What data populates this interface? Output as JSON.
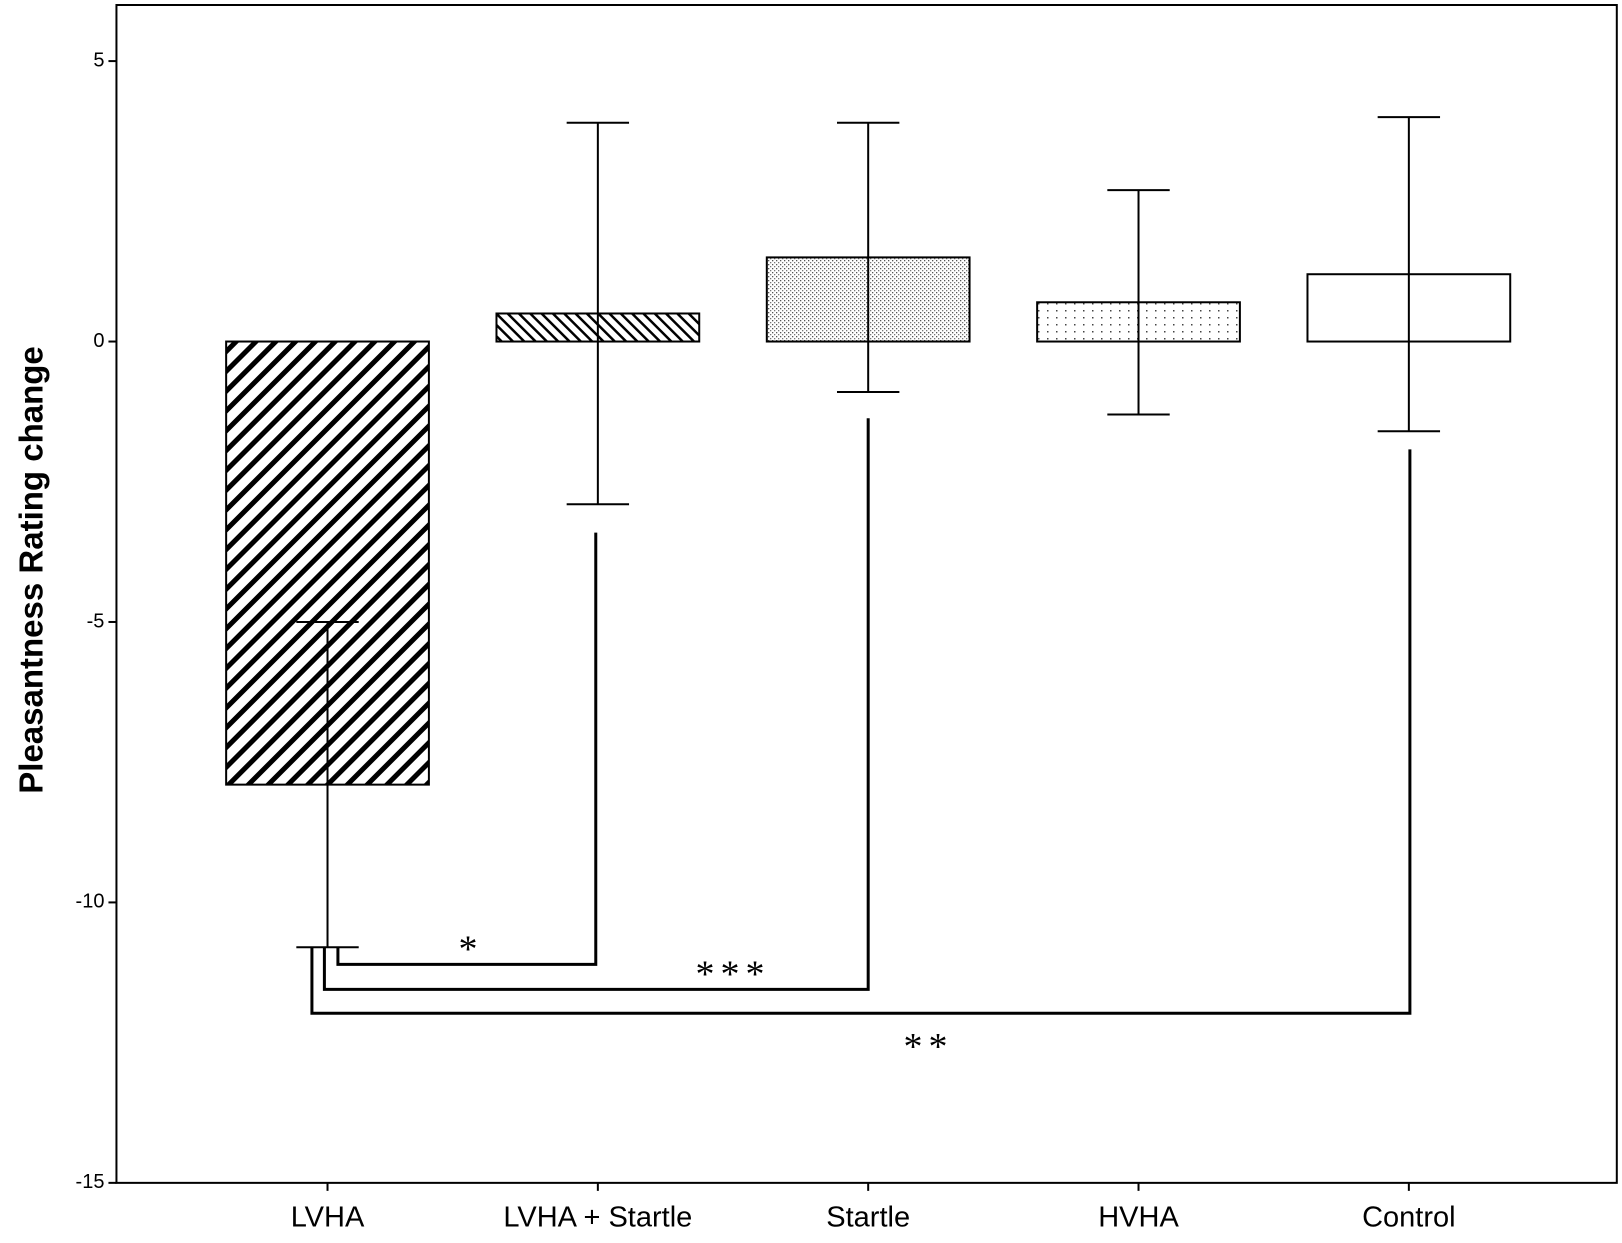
{
  "chart_data": {
    "type": "bar",
    "y_label": "Pleasantness Rating change",
    "categories": [
      "LVHA",
      "LVHA + Startle",
      "Startle",
      "HVHA",
      "Control"
    ],
    "values": [
      -7.9,
      0.5,
      1.5,
      0.7,
      1.2
    ],
    "errors": [
      2.9,
      3.4,
      2.4,
      2.0,
      2.8
    ],
    "color": "#000000",
    "ylim": [
      -15,
      6
    ],
    "yticks": [
      -15,
      -10,
      -5,
      0,
      5
    ],
    "grid": false,
    "annotations": [
      "*",
      "***",
      "**"
    ]
  }
}
